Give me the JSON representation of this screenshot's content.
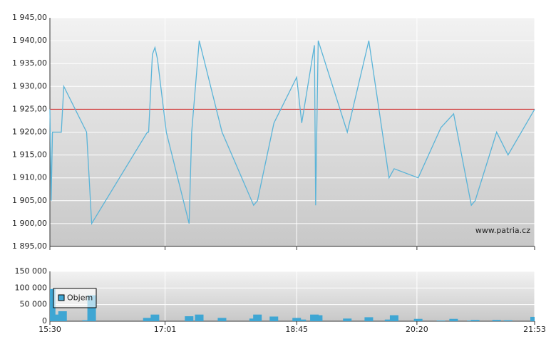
{
  "chart_data": [
    {
      "type": "line",
      "x": [
        930,
        931,
        932,
        939,
        941,
        959,
        963,
        1007,
        1008,
        1011,
        1013,
        1015,
        1022,
        1040,
        1042,
        1048,
        1066,
        1091,
        1094,
        1107,
        1125,
        1129,
        1139,
        1140,
        1142,
        1165,
        1182,
        1198,
        1202,
        1221,
        1239,
        1249,
        1263,
        1266,
        1283,
        1292,
        1313
      ],
      "values": [
        1925,
        1905,
        1920,
        1920,
        1930,
        1920,
        1900,
        1920,
        1920,
        1937,
        1938.5,
        1936,
        1920,
        1900,
        1920,
        1940,
        1920,
        1904,
        1905,
        1922,
        1932,
        1922,
        1939,
        1904,
        1940,
        1920,
        1940,
        1910,
        1912,
        1910,
        1921,
        1924,
        1904,
        1905,
        1920,
        1915,
        1925
      ],
      "color": "#5ab4d8",
      "xlim": [
        930,
        1313
      ],
      "ylim": [
        1895,
        1945
      ],
      "yticks": [
        {
          "value": 1895,
          "label": "1 895,00"
        },
        {
          "value": 1900,
          "label": "1 900,00"
        },
        {
          "value": 1905,
          "label": "1 905,00"
        },
        {
          "value": 1910,
          "label": "1 910,00"
        },
        {
          "value": 1915,
          "label": "1 915,00"
        },
        {
          "value": 1920,
          "label": "1 920,00"
        },
        {
          "value": 1925,
          "label": "1 925,00"
        },
        {
          "value": 1930,
          "label": "1 930,00"
        },
        {
          "value": 1935,
          "label": "1 935,00"
        },
        {
          "value": 1940,
          "label": "1 940,00"
        },
        {
          "value": 1945,
          "label": "1 945,00"
        }
      ],
      "reference_line": {
        "value": 1925,
        "color": "#cc2222"
      },
      "annotation": "www.patria.cz",
      "grid": true
    },
    {
      "type": "bar",
      "x": [
        931,
        935,
        940,
        959,
        963,
        1007,
        1013,
        1040,
        1048,
        1066,
        1091,
        1094,
        1107,
        1125,
        1129,
        1139,
        1142,
        1165,
        1182,
        1198,
        1202,
        1221,
        1239,
        1249,
        1263,
        1266,
        1283,
        1292,
        1313
      ],
      "series": [
        {
          "name": "Objem",
          "color": "#3fa6d3",
          "values": [
            97000,
            20000,
            30000,
            3000,
            78000,
            10000,
            20000,
            15000,
            20000,
            10000,
            8000,
            20000,
            14000,
            10000,
            5000,
            20000,
            18000,
            8000,
            12000,
            5000,
            18000,
            7000,
            2000,
            7000,
            2000,
            4000,
            4000,
            3000,
            13000
          ]
        }
      ],
      "xlim": [
        930,
        1313
      ],
      "xticks": [
        {
          "value": 930,
          "label": "15:30"
        },
        {
          "value": 1021,
          "label": "17:01"
        },
        {
          "value": 1125,
          "label": "18:45"
        },
        {
          "value": 1220,
          "label": "20:20"
        },
        {
          "value": 1313,
          "label": "21:53"
        }
      ],
      "ylim": [
        0,
        150000
      ],
      "yticks": [
        0,
        {
          "value": 50000,
          "label": "50 000"
        },
        {
          "value": 100000,
          "label": "100 000"
        },
        {
          "value": 150000,
          "label": "150 000"
        }
      ],
      "legend": "top-left",
      "grid": true
    }
  ]
}
